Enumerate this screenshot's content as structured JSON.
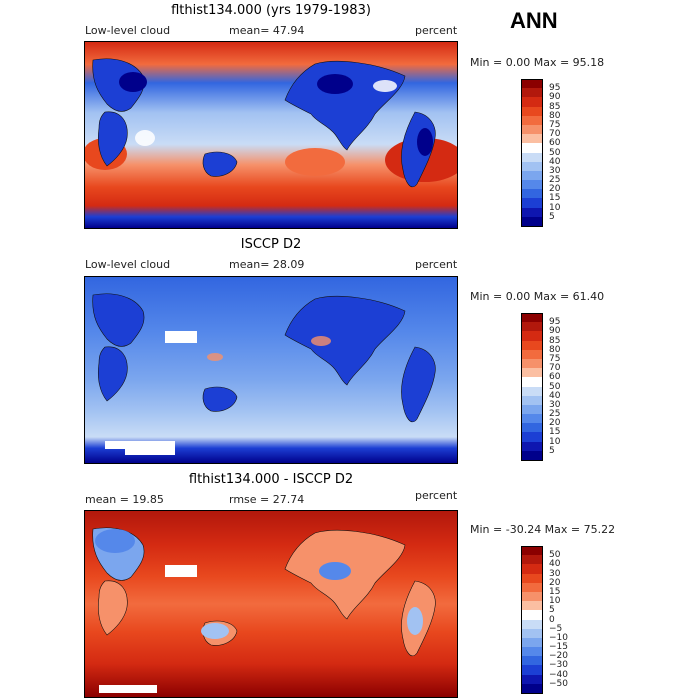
{
  "season": "ANN",
  "panels": [
    {
      "title": "flthist134.000 (yrs 1979-1983)",
      "left_label": "Low-level cloud",
      "mid_label": "mean=  47.94",
      "units": "percent",
      "minmax": "Min =   0.00 Max =  95.18",
      "levels": [
        "95",
        "90",
        "85",
        "80",
        "75",
        "70",
        "60",
        "50",
        "40",
        "30",
        "25",
        "20",
        "15",
        "10",
        "5"
      ],
      "colors": [
        "#8b0000",
        "#b2180c",
        "#d42a12",
        "#e8481e",
        "#f26b3e",
        "#f6916a",
        "#fbbfa2",
        "#ffffff",
        "#c9dcf6",
        "#a2c2f2",
        "#7ba6ee",
        "#5588ea",
        "#3266e0",
        "#1c3fd4",
        "#0e16b0",
        "#00008b"
      ]
    },
    {
      "title": "ISCCP D2",
      "left_label": "Low-level cloud",
      "mid_label": "mean=  28.09",
      "units": "percent",
      "minmax": "Min =   0.00 Max =  61.40",
      "levels": [
        "95",
        "90",
        "85",
        "80",
        "75",
        "70",
        "60",
        "50",
        "40",
        "30",
        "25",
        "20",
        "15",
        "10",
        "5"
      ],
      "colors": [
        "#8b0000",
        "#b2180c",
        "#d42a12",
        "#e8481e",
        "#f26b3e",
        "#f6916a",
        "#fbbfa2",
        "#ffffff",
        "#c9dcf6",
        "#a2c2f2",
        "#7ba6ee",
        "#5588ea",
        "#3266e0",
        "#1c3fd4",
        "#0e16b0",
        "#00008b"
      ]
    },
    {
      "title": "flthist134.000 - ISCCP D2",
      "left_label": "mean =  19.85",
      "mid_label": "rmse =  27.74",
      "units": "percent",
      "minmax": "Min = -30.24 Max =  75.22",
      "levels": [
        "50",
        "40",
        "30",
        "20",
        "15",
        "10",
        "5",
        "0",
        "−5",
        "−10",
        "−15",
        "−20",
        "−30",
        "−40",
        "−50"
      ],
      "colors": [
        "#8b0000",
        "#b2180c",
        "#d42a12",
        "#e8481e",
        "#f26b3e",
        "#f6916a",
        "#fbbfa2",
        "#ffffff",
        "#c9dcf6",
        "#a2c2f2",
        "#7ba6ee",
        "#5588ea",
        "#3266e0",
        "#1c3fd4",
        "#0e16b0",
        "#00008b"
      ]
    }
  ]
}
